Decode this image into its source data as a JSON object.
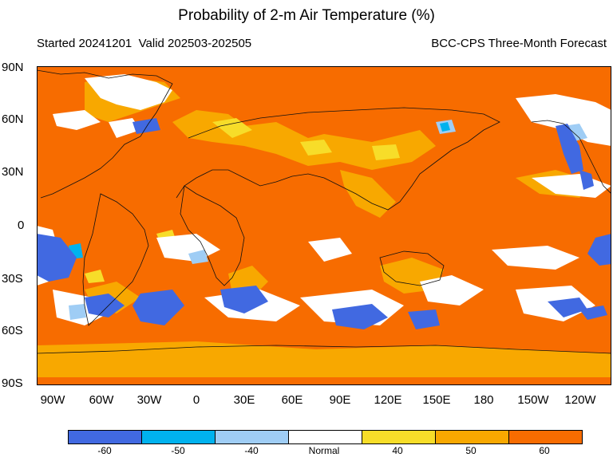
{
  "header": {
    "title": "Probability of 2-m Air Temperature (%)",
    "started": "Started 20241201",
    "valid": "Valid 202503-202505",
    "model": "BCC-CPS Three-Month Forecast"
  },
  "axes": {
    "lat_labels": [
      "90N",
      "60N",
      "30N",
      "0",
      "30S",
      "60S",
      "90S"
    ],
    "lon_labels": [
      "90W",
      "60W",
      "30W",
      "0",
      "30E",
      "60E",
      "90E",
      "120E",
      "150E",
      "180",
      "150W",
      "120W"
    ]
  },
  "legend": {
    "bins": [
      {
        "label": "-60",
        "color": "#4169e1"
      },
      {
        "label": "-50",
        "color": "#00b2ee"
      },
      {
        "label": "-40",
        "color": "#9fcdf5"
      },
      {
        "label": "Normal",
        "color": "#ffffff"
      },
      {
        "label": "40",
        "color": "#f7dd29"
      },
      {
        "label": "50",
        "color": "#f8a800"
      },
      {
        "label": "60",
        "color": "#f76c00"
      }
    ]
  },
  "colors": {
    "dominant": "#f76c00",
    "warm_mid": "#f8a800",
    "warm_low": "#f7dd29",
    "normal": "#ffffff",
    "cold_low": "#9fcdf5",
    "cold_mid": "#00b2ee",
    "cold_high": "#4169e1"
  }
}
